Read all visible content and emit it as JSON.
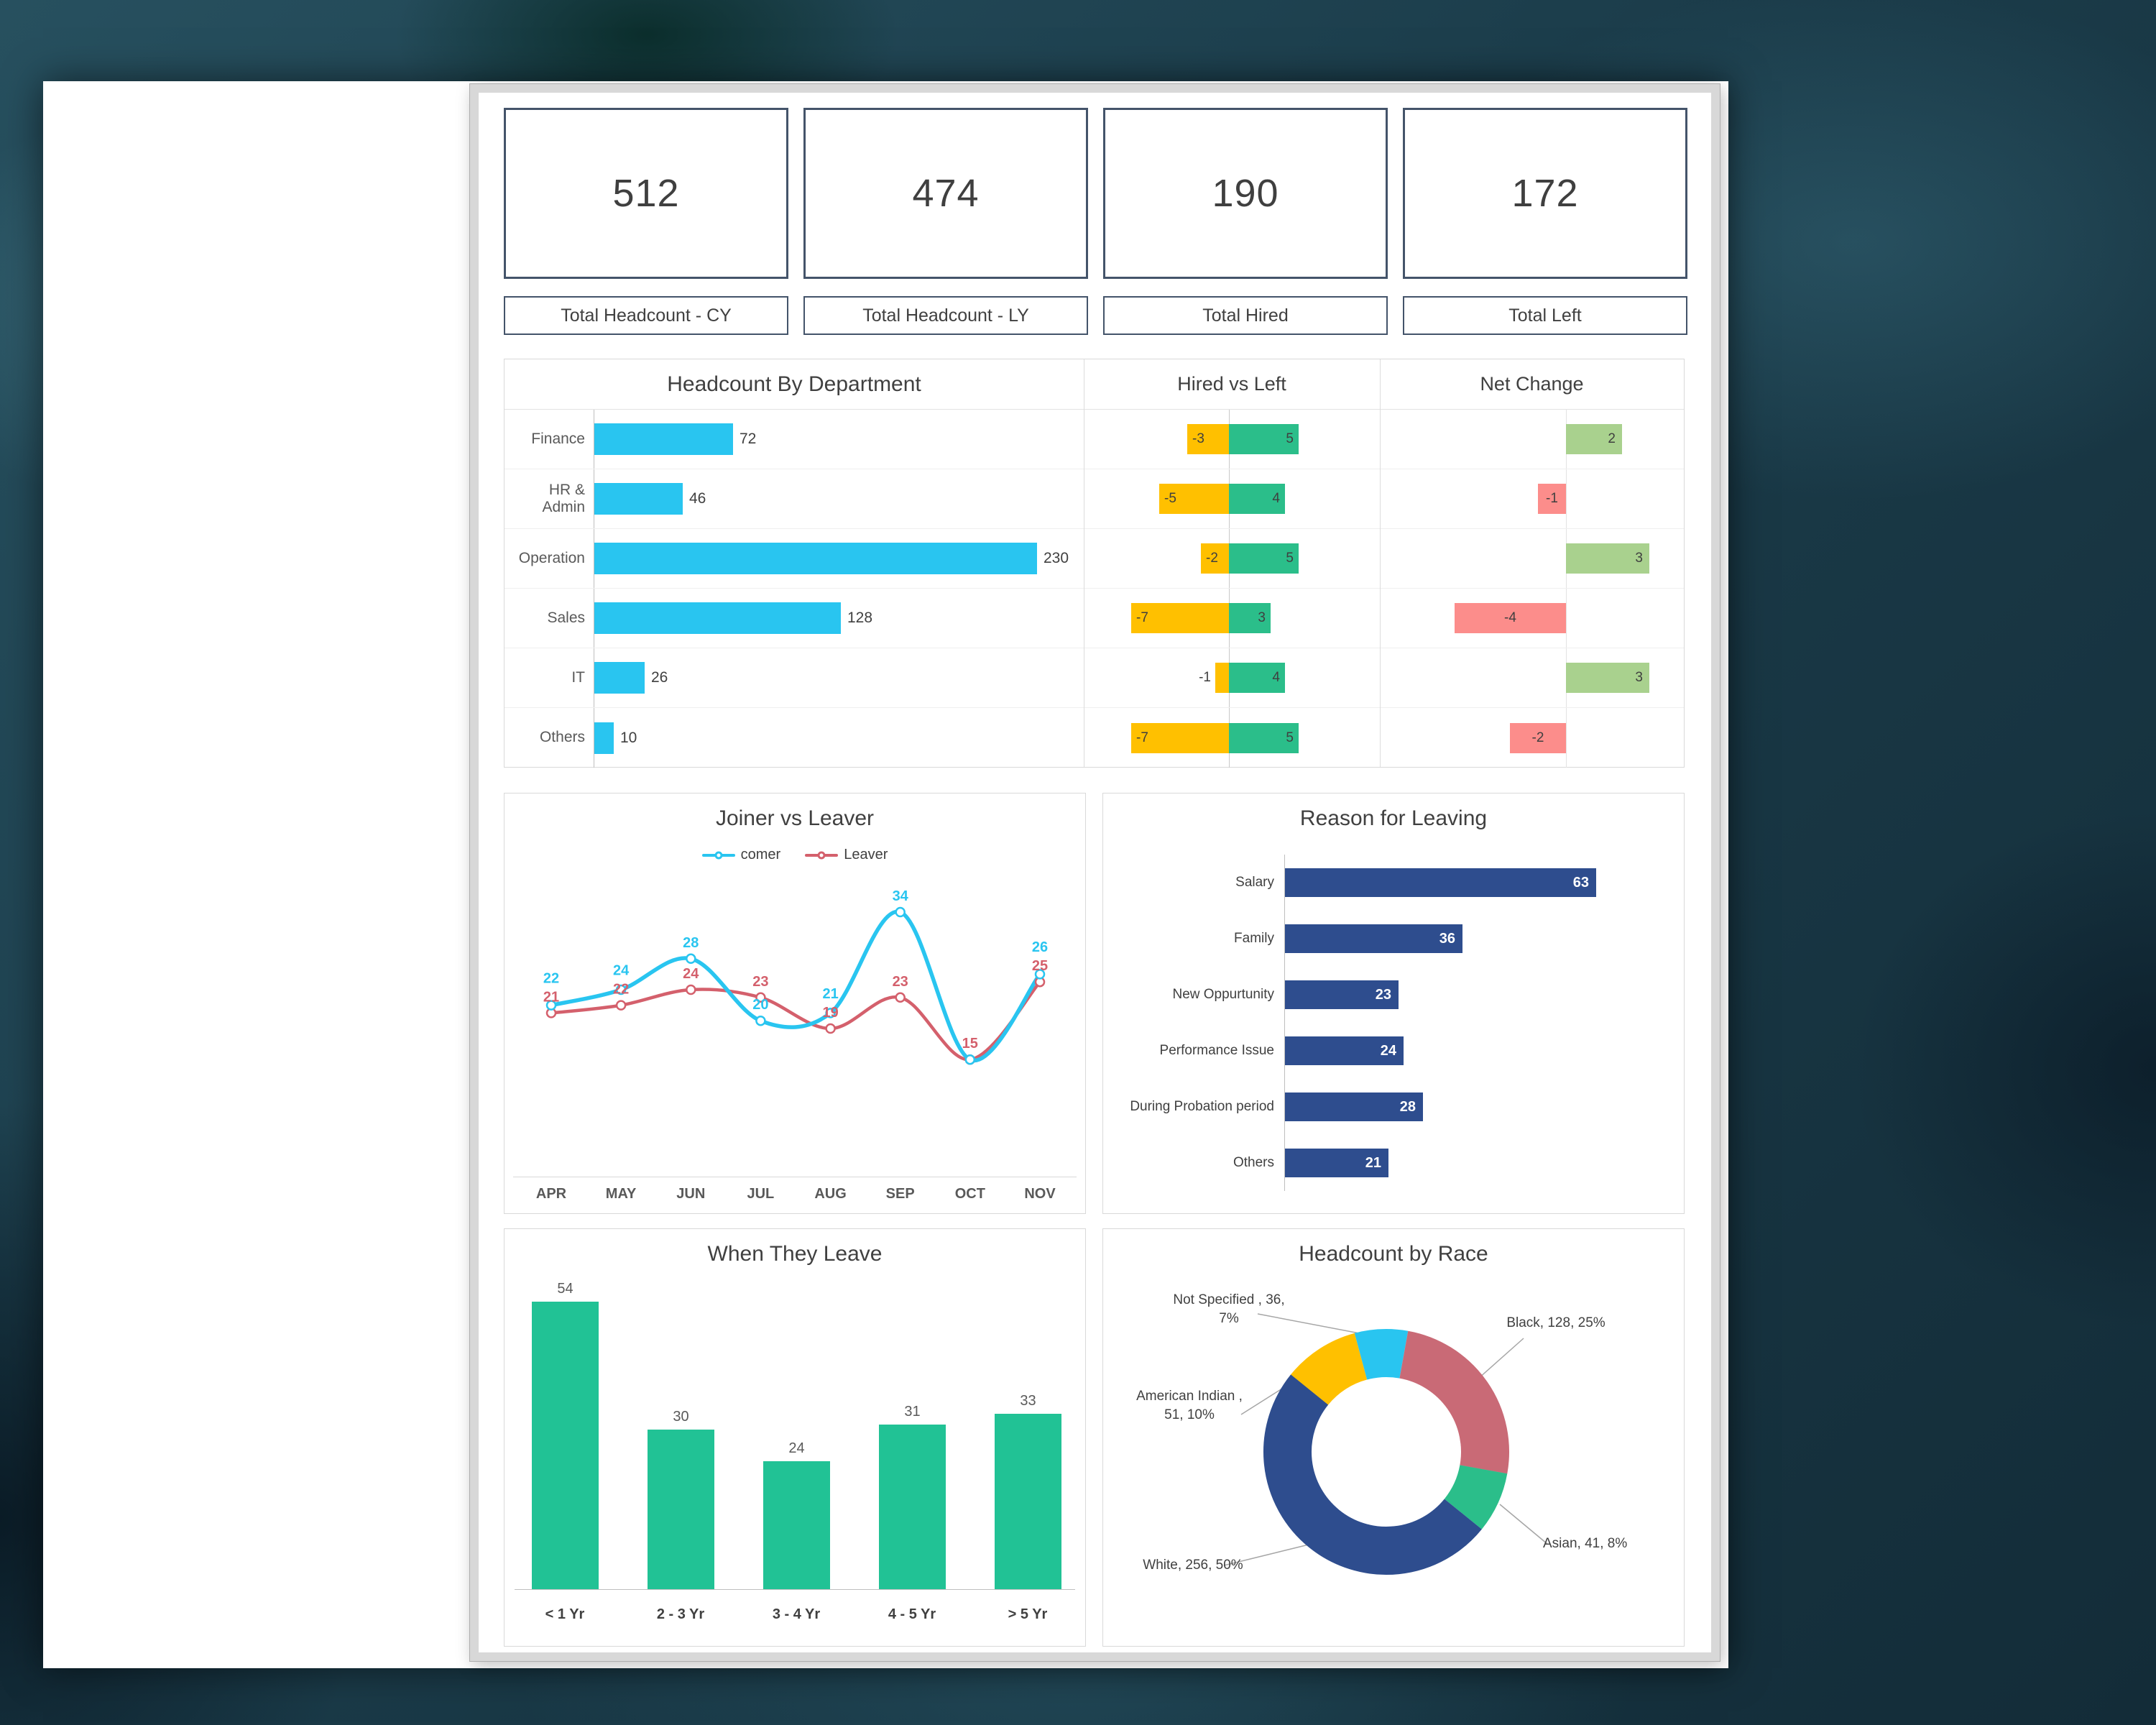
{
  "kpis": [
    {
      "value": "512",
      "label": "Total Headcount - CY"
    },
    {
      "value": "474",
      "label": "Total Headcount - LY"
    },
    {
      "value": "190",
      "label": "Total Hired"
    },
    {
      "value": "172",
      "label": "Total Left"
    }
  ],
  "chart_data": [
    {
      "id": "headcount_by_department",
      "type": "bar",
      "orientation": "horizontal",
      "title": "Headcount By Department",
      "categories": [
        "Finance",
        "HR & Admin",
        "Operation",
        "Sales",
        "IT",
        "Others"
      ],
      "values": [
        72,
        46,
        230,
        128,
        26,
        10
      ],
      "bar_color": "#29C5F0",
      "xlim": [
        0,
        245
      ]
    },
    {
      "id": "hired_vs_left",
      "type": "bar",
      "orientation": "horizontal-diverging",
      "title": "Hired vs Left",
      "categories": [
        "Finance",
        "HR & Admin",
        "Operation",
        "Sales",
        "IT",
        "Others"
      ],
      "series": [
        {
          "name": "Left",
          "values": [
            -3,
            -5,
            -2,
            -7,
            -1,
            -7
          ],
          "color": "#FFC000"
        },
        {
          "name": "Hired",
          "values": [
            5,
            4,
            5,
            3,
            4,
            5
          ],
          "color": "#2BBE8A"
        }
      ],
      "xlim": [
        -10,
        11
      ]
    },
    {
      "id": "net_change",
      "type": "bar",
      "orientation": "horizontal-diverging",
      "title": "Net Change",
      "categories": [
        "Finance",
        "HR & Admin",
        "Operation",
        "Sales",
        "IT",
        "Others"
      ],
      "values": [
        2,
        -1,
        3,
        -4,
        3,
        -2
      ],
      "positive_color": "#A9D18E",
      "negative_color": "#FC8D8B",
      "xlim": [
        -6,
        4
      ]
    },
    {
      "id": "joiner_vs_leaver",
      "type": "line",
      "title": "Joiner vs Leaver",
      "x": [
        "APR",
        "MAY",
        "JUN",
        "JUL",
        "AUG",
        "SEP",
        "OCT",
        "NOV"
      ],
      "series": [
        {
          "name": "comer",
          "values": [
            22,
            24,
            28,
            20,
            21,
            34,
            15,
            26
          ],
          "color": "#29C5F0"
        },
        {
          "name": "Leaver",
          "values": [
            21,
            22,
            24,
            23,
            19,
            23,
            15,
            25
          ],
          "color": "#D4606C"
        }
      ],
      "ylim": [
        10,
        38
      ],
      "legend_position": "top",
      "grid": false
    },
    {
      "id": "reason_for_leaving",
      "type": "bar",
      "orientation": "horizontal",
      "title": "Reason for Leaving",
      "categories": [
        "Salary",
        "Family",
        "New Oppurtunity",
        "Performance Issue",
        "During Probation period",
        "Others"
      ],
      "values": [
        63,
        36,
        23,
        24,
        28,
        21
      ],
      "bar_color": "#2E4D8E",
      "xlim": [
        0,
        70
      ]
    },
    {
      "id": "when_they_leave",
      "type": "bar",
      "orientation": "vertical",
      "title": "When They Leave",
      "categories": [
        "< 1 Yr",
        "2 - 3 Yr",
        "3 - 4 Yr",
        "4 - 5 Yr",
        "> 5 Yr"
      ],
      "values": [
        54,
        30,
        24,
        31,
        33
      ],
      "bar_color": "#21C295",
      "ylim": [
        0,
        60
      ]
    },
    {
      "id": "headcount_by_race",
      "type": "pie",
      "donut": true,
      "title": "Headcount by Race",
      "start_angle_deg": 345,
      "slices": [
        {
          "label": "Not Specified",
          "value": 36,
          "pct": 7,
          "color": "#29C5F0",
          "label_text": "Not Specified , 36, 7%"
        },
        {
          "label": "Black",
          "value": 128,
          "pct": 25,
          "color": "#C96A76",
          "label_text": "Black, 128, 25%"
        },
        {
          "label": "Asian",
          "value": 41,
          "pct": 8,
          "color": "#2BBE8A",
          "label_text": "Asian, 41, 8%"
        },
        {
          "label": "White",
          "value": 256,
          "pct": 50,
          "color": "#2E4D8E",
          "label_text": "White, 256, 50%"
        },
        {
          "label": "American Indian",
          "value": 51,
          "pct": 10,
          "color": "#FFC000",
          "label_text": "American Indian , 51, 10%"
        }
      ]
    }
  ]
}
